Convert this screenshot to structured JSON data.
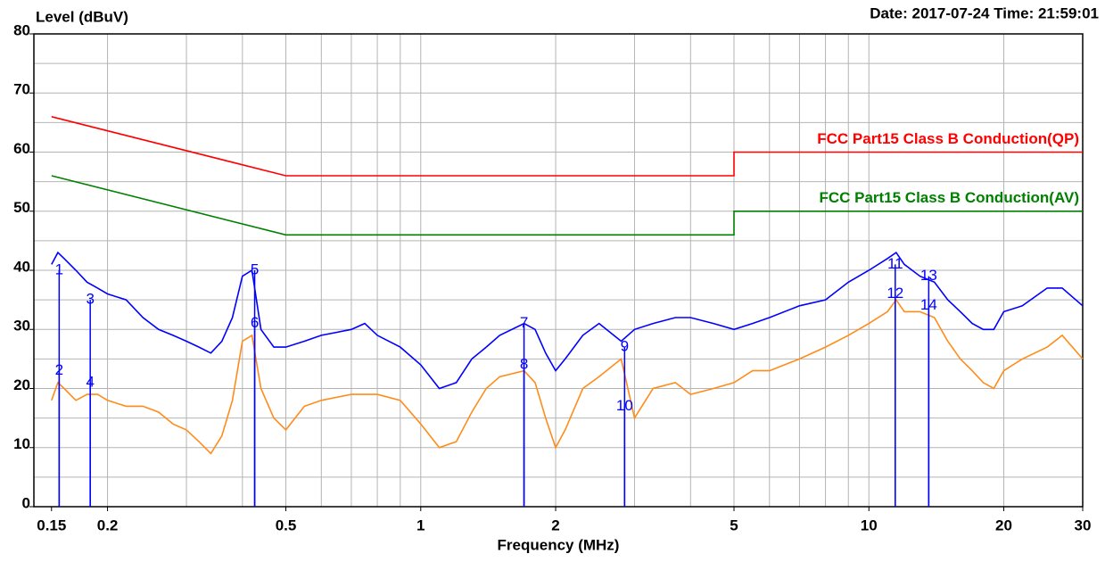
{
  "chart_data": {
    "type": "line",
    "title": "Level (dBuV)",
    "subtitle": "Date: 2017-07-24  Time: 21:59:01",
    "x_label": "Frequency (MHz)",
    "xscale": "log",
    "xlim": [
      0.137,
      30
    ],
    "xticks": [
      0.15,
      0.2,
      0.5,
      1,
      2,
      5,
      10,
      20,
      30
    ],
    "xgrid": [
      0.2,
      0.3,
      0.4,
      0.5,
      0.6,
      0.7,
      0.8,
      0.9,
      1,
      2,
      3,
      4,
      5,
      6,
      7,
      8,
      9,
      10,
      20,
      30
    ],
    "ylim": [
      0,
      80
    ],
    "yticks": [
      0,
      10,
      20,
      30,
      40,
      50,
      60,
      70,
      80
    ],
    "ygrid": [
      5,
      10,
      15,
      20,
      25,
      30,
      35,
      40,
      45,
      50,
      55,
      60,
      65,
      70,
      75
    ],
    "grid": true,
    "series": [
      {
        "name": "FCC Part15 Class B Conduction(QP)",
        "color": "#ff0000",
        "labeled": true,
        "x": [
          0.15,
          0.5,
          5,
          5,
          30
        ],
        "values": [
          66,
          56,
          56,
          60,
          60
        ]
      },
      {
        "name": "FCC Part15 Class B Conduction(AV)",
        "color": "#008000",
        "labeled": true,
        "x": [
          0.15,
          0.5,
          5,
          5,
          30
        ],
        "values": [
          56,
          46,
          46,
          50,
          50
        ]
      },
      {
        "color": "#0000ff",
        "x": [
          0.15,
          0.155,
          0.16,
          0.17,
          0.18,
          0.19,
          0.2,
          0.22,
          0.24,
          0.26,
          0.28,
          0.3,
          0.32,
          0.34,
          0.36,
          0.38,
          0.4,
          0.42,
          0.44,
          0.47,
          0.5,
          0.55,
          0.6,
          0.7,
          0.75,
          0.8,
          0.9,
          1.0,
          1.1,
          1.2,
          1.3,
          1.4,
          1.5,
          1.7,
          1.8,
          1.9,
          2.0,
          2.1,
          2.3,
          2.5,
          2.8,
          3.0,
          3.3,
          3.7,
          4.0,
          4.5,
          5.0,
          5.5,
          6,
          7,
          8,
          9,
          10,
          11,
          11.5,
          12,
          13,
          14,
          15,
          16,
          17,
          18,
          19,
          20,
          22,
          25,
          27,
          30
        ],
        "values": [
          41,
          43,
          42,
          40,
          38,
          37,
          36,
          35,
          32,
          30,
          29,
          28,
          27,
          26,
          28,
          32,
          39,
          40,
          30,
          27,
          27,
          28,
          29,
          30,
          31,
          29,
          27,
          24,
          20,
          21,
          25,
          27,
          29,
          31,
          30,
          26,
          23,
          25,
          29,
          31,
          28,
          30,
          31,
          32,
          32,
          31,
          30,
          31,
          32,
          34,
          35,
          38,
          40,
          42,
          43,
          41,
          39,
          38,
          35,
          33,
          31,
          30,
          30,
          33,
          34,
          37,
          37,
          34
        ]
      },
      {
        "color": "#ff8c1a",
        "x": [
          0.15,
          0.155,
          0.16,
          0.17,
          0.18,
          0.19,
          0.2,
          0.22,
          0.24,
          0.26,
          0.28,
          0.3,
          0.32,
          0.34,
          0.36,
          0.38,
          0.4,
          0.42,
          0.44,
          0.47,
          0.5,
          0.55,
          0.6,
          0.7,
          0.8,
          0.9,
          1.0,
          1.1,
          1.2,
          1.3,
          1.4,
          1.5,
          1.7,
          1.8,
          1.9,
          2.0,
          2.1,
          2.3,
          2.5,
          2.8,
          3.0,
          3.3,
          3.7,
          4.0,
          4.5,
          5.0,
          5.5,
          6,
          7,
          8,
          9,
          10,
          11,
          11.5,
          12,
          13,
          14,
          15,
          16,
          17,
          18,
          19,
          20,
          22,
          25,
          27,
          30
        ],
        "values": [
          18,
          21,
          20,
          18,
          19,
          19,
          18,
          17,
          17,
          16,
          14,
          13,
          11,
          9,
          12,
          18,
          28,
          29,
          20,
          15,
          13,
          17,
          18,
          19,
          19,
          18,
          14,
          10,
          11,
          16,
          20,
          22,
          23,
          21,
          15,
          10,
          13,
          20,
          22,
          25,
          15,
          20,
          21,
          19,
          20,
          21,
          23,
          23,
          25,
          27,
          29,
          31,
          33,
          35,
          33,
          33,
          32,
          28,
          25,
          23,
          21,
          20,
          23,
          25,
          27,
          29,
          25
        ]
      }
    ],
    "markers": {
      "color": "#0000ff",
      "labels": [
        "1",
        "2",
        "3",
        "4",
        "5",
        "6",
        "7",
        "8",
        "9",
        "10",
        "11",
        "12",
        "13",
        "14"
      ],
      "x": [
        0.156,
        0.156,
        0.183,
        0.183,
        0.426,
        0.426,
        1.7,
        1.7,
        2.85,
        2.85,
        11.45,
        11.45,
        13.6,
        13.6
      ],
      "values": [
        40,
        23,
        35,
        21,
        40,
        31,
        31,
        24,
        27,
        17,
        41,
        36,
        39,
        34
      ]
    }
  }
}
